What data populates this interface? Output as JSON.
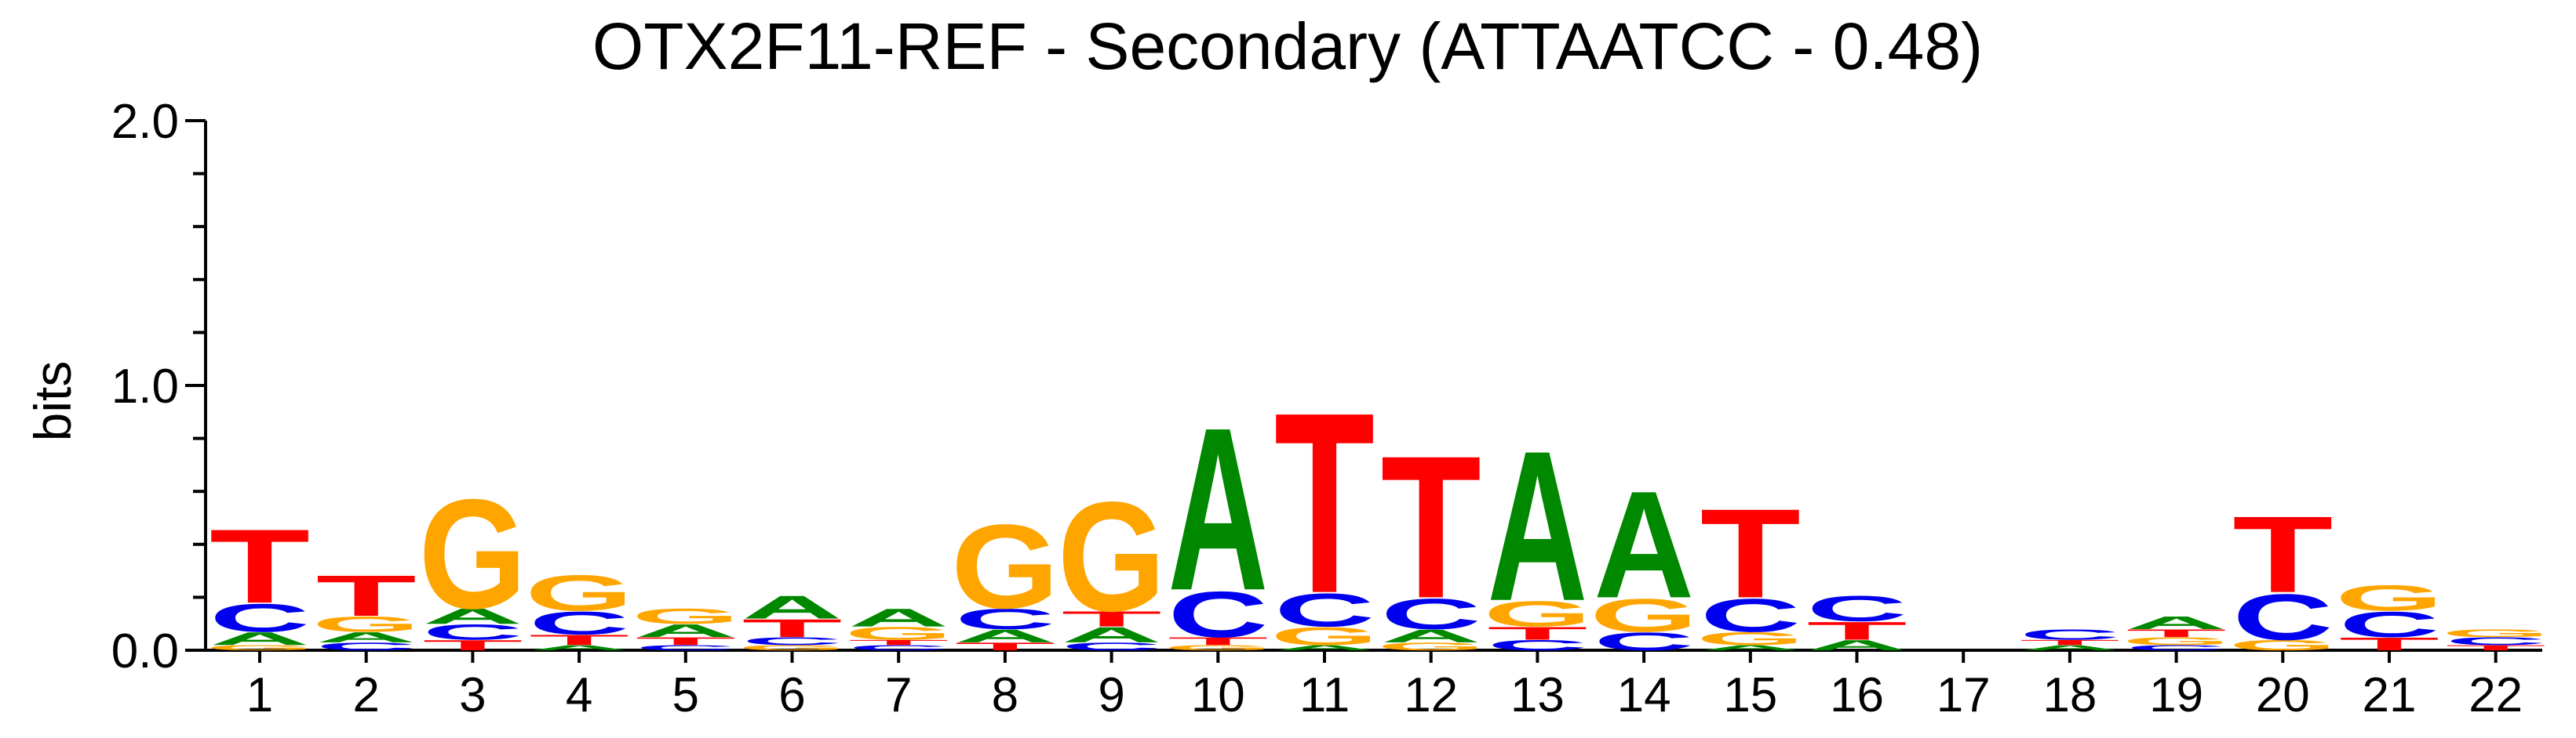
{
  "chart_data": {
    "type": "sequence-logo",
    "title": "OTX2F11-REF - Secondary (ATTAATCC - 0.48)",
    "ylabel": "bits",
    "xlabel": "",
    "ylim": [
      0,
      2.0
    ],
    "y_ticks": [
      "0.0",
      "1.0",
      "2.0"
    ],
    "colors": {
      "A": "#008800",
      "C": "#0000ee",
      "G": "#ffa500",
      "T": "#ff0000"
    },
    "positions": [
      {
        "label": "1",
        "stack": [
          [
            "G",
            0.02
          ],
          [
            "A",
            0.05
          ],
          [
            "C",
            0.11
          ],
          [
            "T",
            0.29
          ]
        ]
      },
      {
        "label": "2",
        "stack": [
          [
            "C",
            0.03
          ],
          [
            "A",
            0.04
          ],
          [
            "G",
            0.06
          ],
          [
            "T",
            0.16
          ]
        ]
      },
      {
        "label": "3",
        "stack": [
          [
            "T",
            0.04
          ],
          [
            "C",
            0.06
          ],
          [
            "A",
            0.06
          ],
          [
            "G",
            0.43
          ]
        ]
      },
      {
        "label": "4",
        "stack": [
          [
            "A",
            0.02
          ],
          [
            "T",
            0.04
          ],
          [
            "C",
            0.09
          ],
          [
            "G",
            0.14
          ]
        ]
      },
      {
        "label": "5",
        "stack": [
          [
            "C",
            0.02
          ],
          [
            "T",
            0.03
          ],
          [
            "A",
            0.05
          ],
          [
            "G",
            0.06
          ]
        ]
      },
      {
        "label": "6",
        "stack": [
          [
            "G",
            0.02
          ],
          [
            "C",
            0.03
          ],
          [
            "T",
            0.07
          ],
          [
            "A",
            0.09
          ]
        ]
      },
      {
        "label": "7",
        "stack": [
          [
            "C",
            0.02
          ],
          [
            "T",
            0.02
          ],
          [
            "G",
            0.05
          ],
          [
            "A",
            0.07
          ]
        ]
      },
      {
        "label": "8",
        "stack": [
          [
            "T",
            0.03
          ],
          [
            "A",
            0.05
          ],
          [
            "C",
            0.08
          ],
          [
            "G",
            0.33
          ]
        ]
      },
      {
        "label": "9",
        "stack": [
          [
            "C",
            0.03
          ],
          [
            "A",
            0.06
          ],
          [
            "T",
            0.06
          ],
          [
            "G",
            0.43
          ]
        ]
      },
      {
        "label": "10",
        "stack": [
          [
            "G",
            0.02
          ],
          [
            "T",
            0.03
          ],
          [
            "C",
            0.18
          ],
          [
            "A",
            0.64
          ]
        ]
      },
      {
        "label": "11",
        "stack": [
          [
            "A",
            0.02
          ],
          [
            "G",
            0.07
          ],
          [
            "C",
            0.13
          ],
          [
            "T",
            0.71
          ]
        ]
      },
      {
        "label": "12",
        "stack": [
          [
            "G",
            0.03
          ],
          [
            "A",
            0.05
          ],
          [
            "C",
            0.12
          ],
          [
            "T",
            0.56
          ]
        ]
      },
      {
        "label": "13",
        "stack": [
          [
            "C",
            0.04
          ],
          [
            "T",
            0.05
          ],
          [
            "G",
            0.1
          ],
          [
            "A",
            0.59
          ]
        ]
      },
      {
        "label": "14",
        "stack": [
          [
            "C",
            0.07
          ],
          [
            "G",
            0.13
          ],
          [
            "A",
            0.42
          ]
        ]
      },
      {
        "label": "15",
        "stack": [
          [
            "A",
            0.02
          ],
          [
            "G",
            0.05
          ],
          [
            "C",
            0.13
          ],
          [
            "T",
            0.35
          ]
        ]
      },
      {
        "label": "16",
        "stack": [
          [
            "A",
            0.04
          ],
          [
            "T",
            0.07
          ],
          [
            "C",
            0.1
          ]
        ]
      },
      {
        "label": "17",
        "stack": []
      },
      {
        "label": "18",
        "stack": [
          [
            "A",
            0.02
          ],
          [
            "T",
            0.02
          ],
          [
            "C",
            0.04
          ]
        ]
      },
      {
        "label": "19",
        "stack": [
          [
            "C",
            0.02
          ],
          [
            "G",
            0.03
          ],
          [
            "T",
            0.03
          ],
          [
            "A",
            0.05
          ]
        ]
      },
      {
        "label": "20",
        "stack": [
          [
            "G",
            0.04
          ],
          [
            "C",
            0.18
          ],
          [
            "T",
            0.3
          ]
        ]
      },
      {
        "label": "21",
        "stack": [
          [
            "T",
            0.05
          ],
          [
            "C",
            0.1
          ],
          [
            "G",
            0.1
          ]
        ]
      },
      {
        "label": "22",
        "stack": [
          [
            "T",
            0.02
          ],
          [
            "C",
            0.03
          ],
          [
            "G",
            0.03
          ]
        ]
      }
    ]
  }
}
